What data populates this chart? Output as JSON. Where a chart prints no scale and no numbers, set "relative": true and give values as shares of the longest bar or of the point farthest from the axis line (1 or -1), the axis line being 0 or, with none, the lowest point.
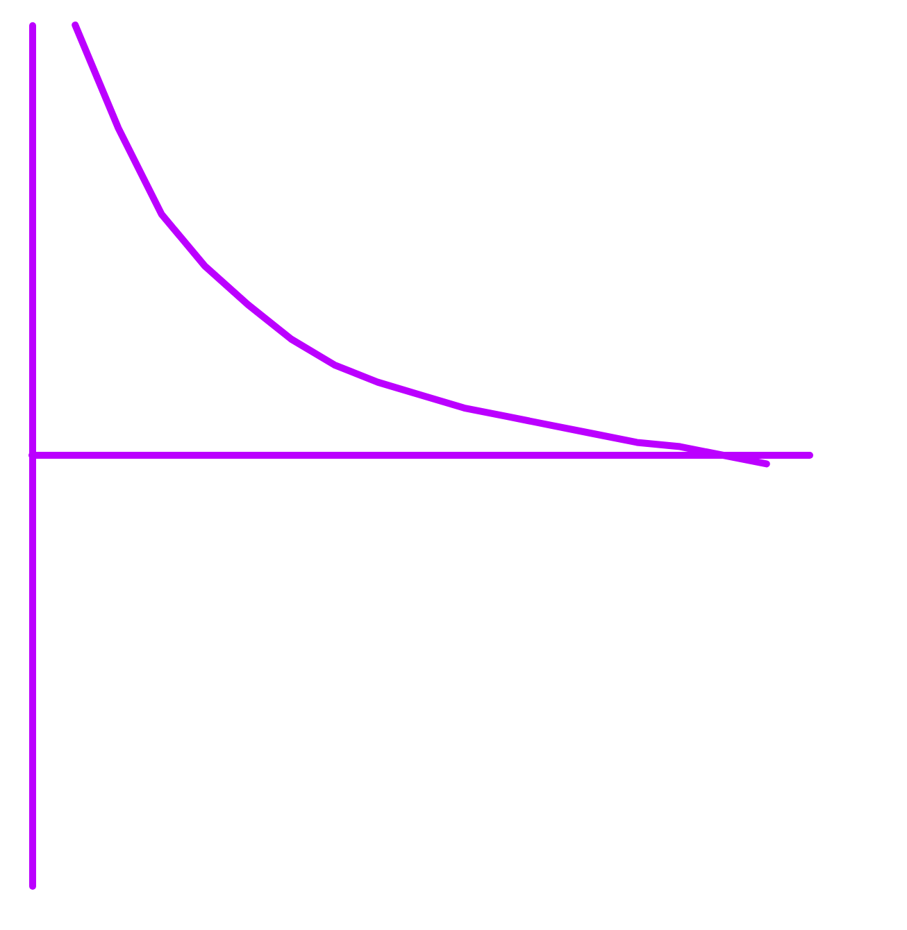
{
  "chart_data": {
    "type": "line",
    "relative": true,
    "categories": [
      null,
      null,
      null,
      null,
      null,
      null,
      null,
      null,
      null,
      null,
      null,
      null,
      null,
      null,
      null,
      null,
      null
    ],
    "series": [
      {
        "color": "#bb00ff",
        "values": [
          1.0,
          0.76,
          0.56,
          0.44,
          0.35,
          0.27,
          0.21,
          0.17,
          0.14,
          0.11,
          0.09,
          0.07,
          0.05,
          0.03,
          0.02,
          0.0,
          -0.02
        ]
      }
    ],
    "ref_lines": [
      {
        "axis": "y",
        "value": 0,
        "color": "#bb00ff"
      }
    ],
    "grid": false,
    "legend": false,
    "marker": "none",
    "line_style": "solid"
  }
}
